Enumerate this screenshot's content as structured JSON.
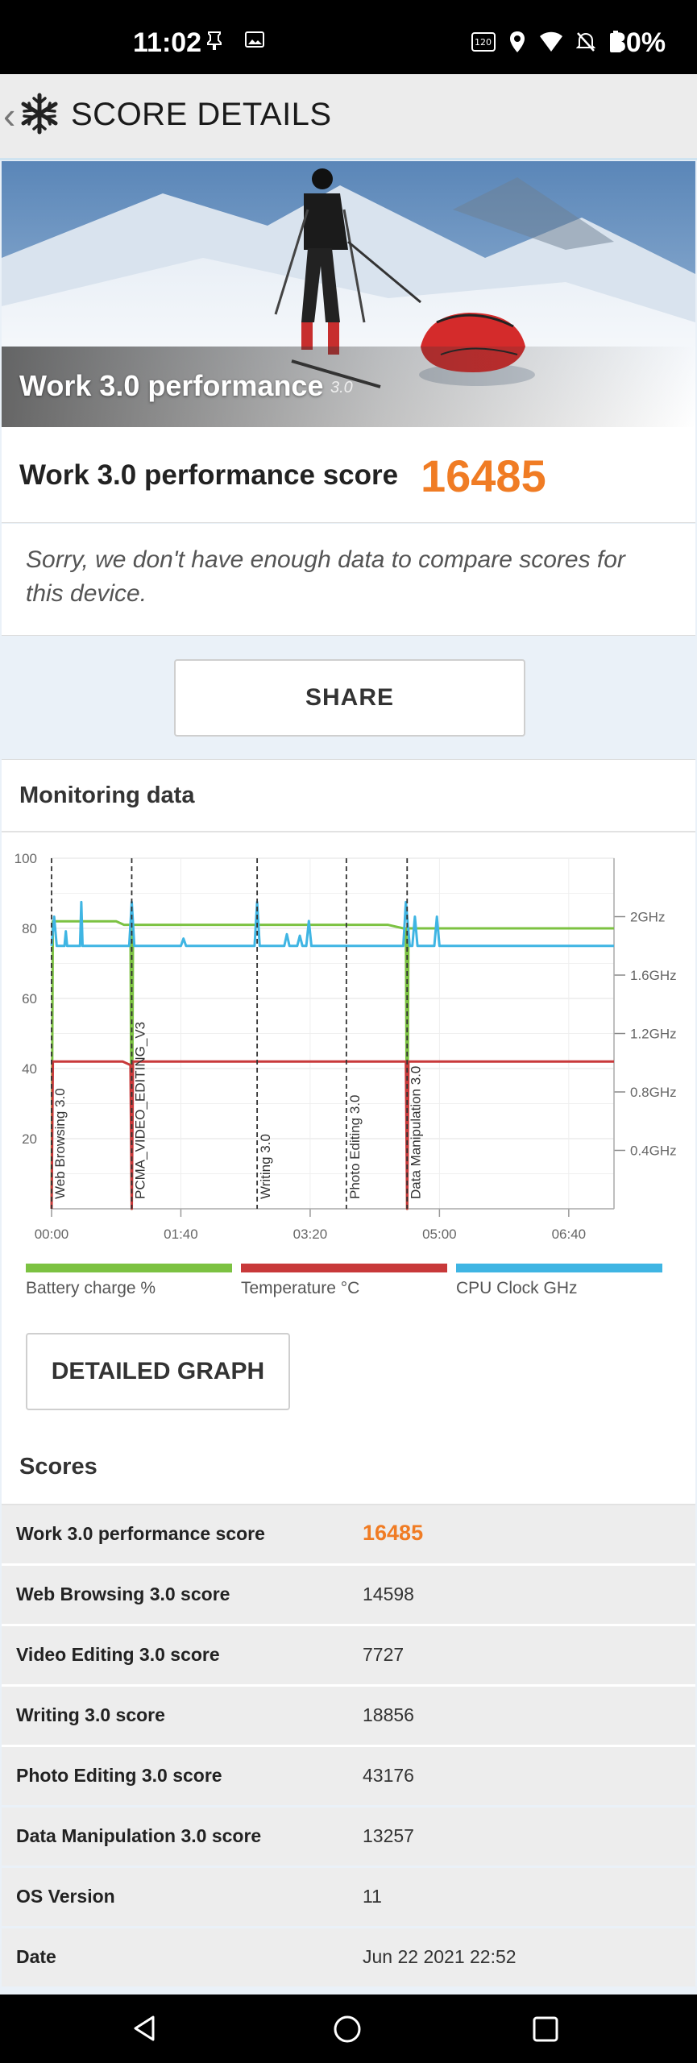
{
  "status_bar": {
    "time": "11:02",
    "battery_percent": "80%",
    "icons": [
      "notification-pin-icon",
      "gallery-icon",
      "refresh-rate-120hz-icon",
      "location-icon",
      "wifi-icon",
      "mute-icon",
      "battery-icon"
    ]
  },
  "app_bar": {
    "title": "SCORE DETAILS"
  },
  "hero": {
    "title": "Work 3.0 performance",
    "version": "3.0"
  },
  "score": {
    "label": "Work 3.0 performance score",
    "value": "16485"
  },
  "compare_note": "Sorry, we don't have enough data to compare scores for this device.",
  "share_label": "SHARE",
  "monitoring": {
    "title": "Monitoring data",
    "detailed_graph_label": "DETAILED GRAPH"
  },
  "chart_data": {
    "type": "line",
    "x_ticks": [
      "00:00",
      "01:40",
      "03:20",
      "05:00",
      "06:40"
    ],
    "y_left_ticks": [
      "100",
      "80",
      "60",
      "40",
      "20"
    ],
    "y_right_ticks": [
      "2GHz",
      "1.6GHz",
      "1.2GHz",
      "0.8GHz",
      "0.4GHz"
    ],
    "ylim_left": [
      0,
      100
    ],
    "ylim_right_ghz": [
      0,
      2.4
    ],
    "xlim_seconds": [
      0,
      435
    ],
    "grid": true,
    "legend_position": "bottom",
    "markers": [
      {
        "t": 0,
        "label": "Web Browsing 3.0"
      },
      {
        "t": 62,
        "label": "PCMA_VIDEO_EDITING_V3"
      },
      {
        "t": 159,
        "label": "Writing 3.0"
      },
      {
        "t": 228,
        "label": "Photo Editing 3.0"
      },
      {
        "t": 275,
        "label": "Data Manipulation 3.0"
      }
    ],
    "series": [
      {
        "name": "Battery charge %",
        "color": "#7cc242",
        "points": [
          [
            0,
            0
          ],
          [
            1,
            82
          ],
          [
            50,
            82
          ],
          [
            56,
            81
          ],
          [
            61,
            81
          ],
          [
            62,
            0
          ],
          [
            63,
            81
          ],
          [
            260,
            81
          ],
          [
            272,
            80
          ],
          [
            274,
            80
          ],
          [
            275,
            0
          ],
          [
            276,
            80
          ],
          [
            435,
            80
          ]
        ]
      },
      {
        "name": "Temperature °C",
        "color": "#c8393a",
        "points": [
          [
            0,
            0
          ],
          [
            1,
            42
          ],
          [
            55,
            42
          ],
          [
            61,
            41
          ],
          [
            62,
            0
          ],
          [
            63,
            42
          ],
          [
            274,
            42
          ],
          [
            275,
            0
          ],
          [
            276,
            42
          ],
          [
            435,
            42
          ]
        ]
      },
      {
        "name": "CPU Clock GHz",
        "color": "#3fb5e3",
        "points": [
          [
            0,
            1.8
          ],
          [
            2,
            2.0
          ],
          [
            4,
            1.8
          ],
          [
            10,
            1.8
          ],
          [
            11,
            1.9
          ],
          [
            12,
            1.8
          ],
          [
            22,
            1.8
          ],
          [
            23,
            2.1
          ],
          [
            24,
            1.8
          ],
          [
            60,
            1.8
          ],
          [
            62,
            2.1
          ],
          [
            64,
            1.8
          ],
          [
            100,
            1.8
          ],
          [
            102,
            1.85
          ],
          [
            104,
            1.8
          ],
          [
            157,
            1.8
          ],
          [
            159,
            2.1
          ],
          [
            161,
            1.8
          ],
          [
            180,
            1.8
          ],
          [
            182,
            1.88
          ],
          [
            184,
            1.8
          ],
          [
            190,
            1.8
          ],
          [
            192,
            1.87
          ],
          [
            194,
            1.8
          ],
          [
            197,
            1.8
          ],
          [
            199,
            1.97
          ],
          [
            201,
            1.8
          ],
          [
            272,
            1.8
          ],
          [
            274,
            2.1
          ],
          [
            277,
            1.8
          ],
          [
            279,
            1.8
          ],
          [
            281,
            2.0
          ],
          [
            283,
            1.8
          ],
          [
            296,
            1.8
          ],
          [
            298,
            2.0
          ],
          [
            300,
            1.8
          ],
          [
            435,
            1.8
          ]
        ]
      }
    ]
  },
  "scores_section": {
    "title": "Scores",
    "rows": [
      {
        "label": "Work 3.0 performance score",
        "value": "16485"
      },
      {
        "label": "Web Browsing 3.0 score",
        "value": "14598"
      },
      {
        "label": "Video Editing 3.0 score",
        "value": "7727"
      },
      {
        "label": "Writing 3.0 score",
        "value": "18856"
      },
      {
        "label": "Photo Editing 3.0 score",
        "value": "43176"
      },
      {
        "label": "Data Manipulation 3.0 score",
        "value": "13257"
      },
      {
        "label": "OS Version",
        "value": "11"
      },
      {
        "label": "Date",
        "value": "Jun 22 2021 22:52"
      }
    ]
  },
  "nav_bar": {
    "icons": [
      "back-icon",
      "home-icon",
      "recents-icon"
    ]
  }
}
